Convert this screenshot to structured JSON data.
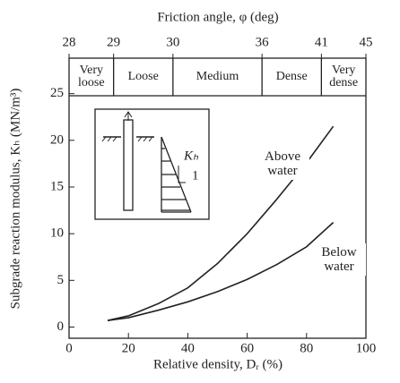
{
  "chart_data": {
    "type": "line",
    "title": "Friction angle, φ (deg)",
    "x_label": "Relative density, Dᵣ (%)",
    "y_label": "Subgrade reaction modulus, Kₕ (MN/m³)",
    "xlim": [
      0,
      100
    ],
    "xticks": [
      0,
      20,
      40,
      60,
      80,
      100
    ],
    "ylim": [
      -1.2,
      28.8
    ],
    "yticks": [
      0,
      5,
      10,
      15,
      20,
      25
    ],
    "friction_angle_ticks": [
      28,
      29,
      30,
      36,
      41,
      45
    ],
    "friction_angle_ticks_dr": [
      0,
      15,
      35,
      65,
      85,
      100
    ],
    "soil_classes": [
      "Very loose",
      "Loose",
      "Medium",
      "Dense",
      "Very dense"
    ],
    "soil_class_bounds": [
      0,
      15,
      35,
      65,
      85,
      100
    ],
    "inset_labels": [
      "Kₕ",
      "1"
    ],
    "x": [
      13,
      20,
      30,
      40,
      50,
      60,
      70,
      80,
      89
    ],
    "series": [
      {
        "name": "Above water",
        "color": "#222222",
        "values": [
          0.7,
          1.2,
          2.5,
          4.2,
          6.8,
          10,
          13.7,
          17.6,
          21.5
        ]
      },
      {
        "name": "Below water",
        "color": "#222222",
        "values": [
          0.7,
          1.0,
          1.8,
          2.7,
          3.8,
          5.1,
          6.7,
          8.6,
          11.2
        ]
      }
    ]
  }
}
